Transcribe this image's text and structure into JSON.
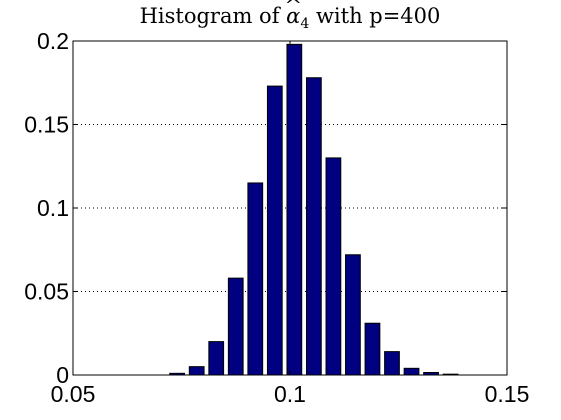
{
  "chart_data": {
    "type": "bar",
    "title": {
      "prefix": "Histogram of ",
      "symbol": "α",
      "accent": "^",
      "subscript": "4",
      "suffix": " with p=400"
    },
    "xlabel": "",
    "ylabel": "",
    "xlim": [
      0.05,
      0.15
    ],
    "ylim": [
      0,
      0.2
    ],
    "x_ticks": [
      {
        "value": 0.05,
        "label": "0.05"
      },
      {
        "value": 0.1,
        "label": "0.1"
      },
      {
        "value": 0.15,
        "label": "0.15"
      }
    ],
    "y_ticks": [
      {
        "value": 0,
        "label": "0"
      },
      {
        "value": 0.05,
        "label": "0.05"
      },
      {
        "value": 0.1,
        "label": "0.1"
      },
      {
        "value": 0.15,
        "label": "0.15"
      },
      {
        "value": 0.2,
        "label": "0.2"
      }
    ],
    "grid": "horizontal dotted at y ticks",
    "bar_width": 0.0034,
    "bar_color": "#000080",
    "bar_edge_color": "#000000",
    "bins": [
      {
        "x": 0.074,
        "value": 0.001
      },
      {
        "x": 0.0785,
        "value": 0.005
      },
      {
        "x": 0.083,
        "value": 0.02
      },
      {
        "x": 0.0875,
        "value": 0.058
      },
      {
        "x": 0.092,
        "value": 0.115
      },
      {
        "x": 0.0965,
        "value": 0.173
      },
      {
        "x": 0.101,
        "value": 0.198
      },
      {
        "x": 0.1055,
        "value": 0.178
      },
      {
        "x": 0.11,
        "value": 0.13
      },
      {
        "x": 0.1145,
        "value": 0.072
      },
      {
        "x": 0.119,
        "value": 0.031
      },
      {
        "x": 0.1235,
        "value": 0.014
      },
      {
        "x": 0.128,
        "value": 0.004
      },
      {
        "x": 0.1325,
        "value": 0.0015
      },
      {
        "x": 0.137,
        "value": 0.0005
      }
    ]
  }
}
